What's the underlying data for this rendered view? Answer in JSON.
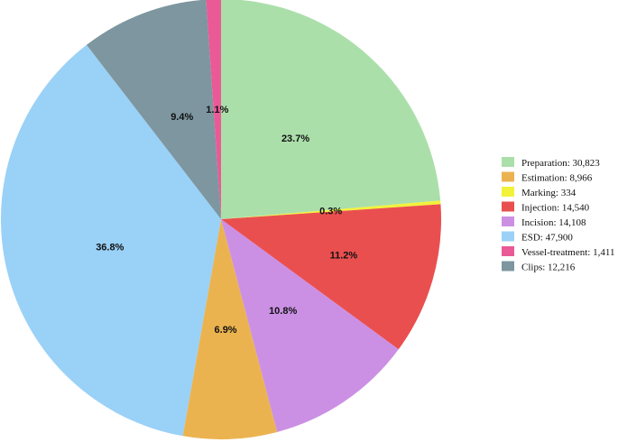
{
  "chart_data": {
    "type": "pie",
    "title": "",
    "legend_position": "right",
    "slices": [
      {
        "legend": "Preparation: 30,823",
        "value": 30823,
        "label": "23.7%",
        "color": "#abdfaa"
      },
      {
        "legend": "Marking:    334",
        "value": 334,
        "label": "0.3%",
        "color": "#f2f23a"
      },
      {
        "legend": "Injection: 14,540",
        "value": 14540,
        "label": "11.2%",
        "color": "#ea4f4f"
      },
      {
        "legend": "Incision: 14,108",
        "value": 14108,
        "label": "10.8%",
        "color": "#cb90e4"
      },
      {
        "legend": "Estimation:  8,966",
        "value": 8966,
        "label": "6.9%",
        "color": "#ebb350"
      },
      {
        "legend": "ESD: 47,900",
        "value": 47900,
        "label": "36.8%",
        "color": "#9ad1f7"
      },
      {
        "legend": "Clips: 12,216",
        "value": 12216,
        "label": "9.4%",
        "color": "#7d969f"
      },
      {
        "legend": "Vessel-treatment:  1,411",
        "value": 1411,
        "label": "1.1%",
        "color": "#ea5a96"
      }
    ],
    "legend_order": [
      "Preparation: 30,823",
      "Estimation:  8,966",
      "Marking:    334",
      "Injection: 14,540",
      "Incision: 14,108",
      "ESD: 47,900",
      "Vessel-treatment:  1,411",
      "Clips: 12,216"
    ]
  }
}
